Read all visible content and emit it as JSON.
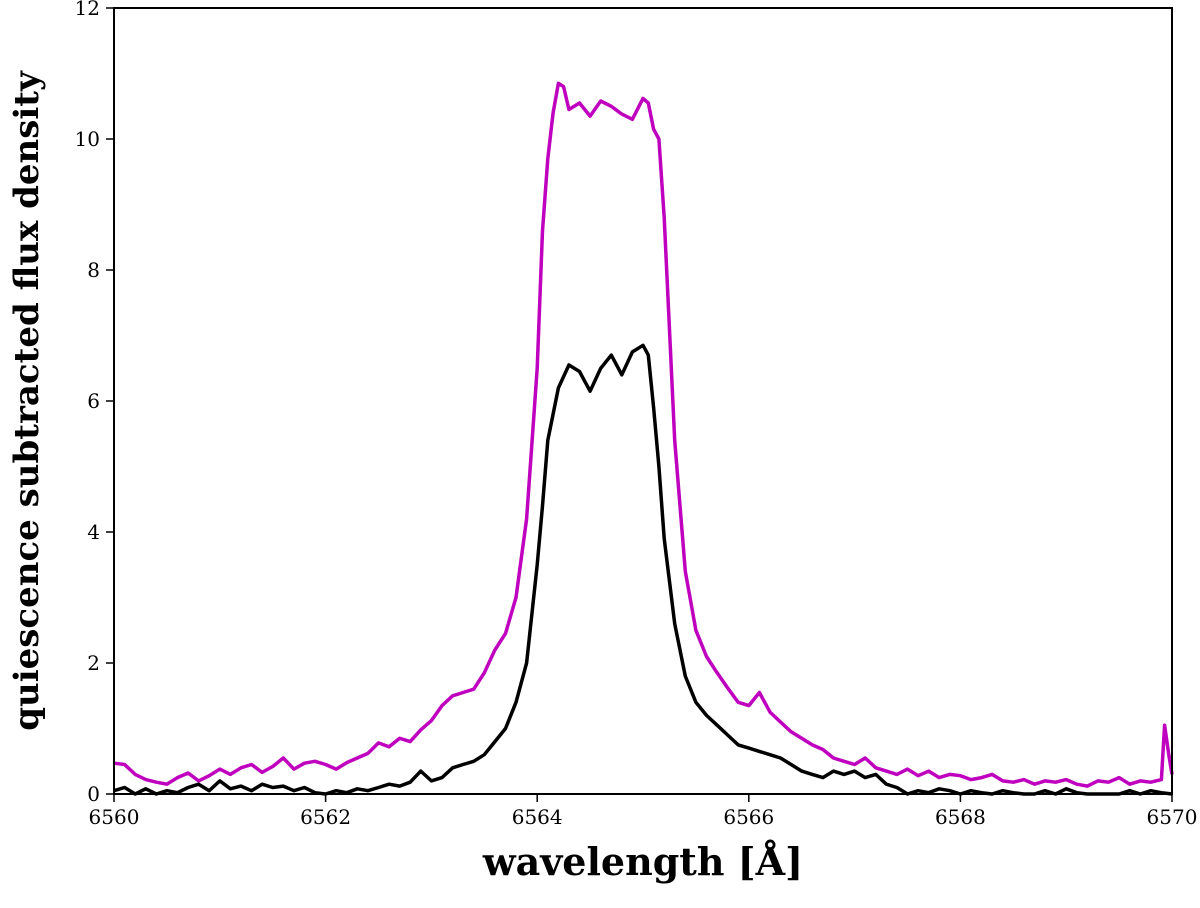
{
  "chart_data": {
    "type": "line",
    "title": "",
    "xlabel": "wavelength [Å]",
    "ylabel": "quiescence subtracted flux density",
    "xlim": [
      6560,
      6570
    ],
    "ylim": [
      0,
      12
    ],
    "x_ticks": [
      6560,
      6562,
      6564,
      6566,
      6568,
      6570
    ],
    "y_ticks": [
      0,
      2,
      4,
      6,
      8,
      10,
      12
    ],
    "x_tick_labels": [
      "6560",
      "6562",
      "6564",
      "6566",
      "6568",
      "6570"
    ],
    "y_tick_labels": [
      "0",
      "2",
      "4",
      "6",
      "8",
      "10",
      "12"
    ],
    "grid": false,
    "legend": "none",
    "series": [
      {
        "name": "magenta",
        "color": "#bf00bf",
        "points": [
          [
            6560.0,
            0.47
          ],
          [
            6560.1,
            0.45
          ],
          [
            6560.2,
            0.3
          ],
          [
            6560.3,
            0.22
          ],
          [
            6560.4,
            0.18
          ],
          [
            6560.5,
            0.15
          ],
          [
            6560.6,
            0.25
          ],
          [
            6560.7,
            0.32
          ],
          [
            6560.8,
            0.2
          ],
          [
            6560.9,
            0.28
          ],
          [
            6561.0,
            0.38
          ],
          [
            6561.1,
            0.3
          ],
          [
            6561.2,
            0.4
          ],
          [
            6561.3,
            0.45
          ],
          [
            6561.4,
            0.33
          ],
          [
            6561.5,
            0.42
          ],
          [
            6561.6,
            0.55
          ],
          [
            6561.7,
            0.38
          ],
          [
            6561.8,
            0.47
          ],
          [
            6561.9,
            0.5
          ],
          [
            6562.0,
            0.45
          ],
          [
            6562.1,
            0.38
          ],
          [
            6562.2,
            0.48
          ],
          [
            6562.3,
            0.55
          ],
          [
            6562.4,
            0.62
          ],
          [
            6562.5,
            0.78
          ],
          [
            6562.6,
            0.72
          ],
          [
            6562.7,
            0.85
          ],
          [
            6562.8,
            0.8
          ],
          [
            6562.9,
            0.98
          ],
          [
            6563.0,
            1.12
          ],
          [
            6563.1,
            1.35
          ],
          [
            6563.2,
            1.5
          ],
          [
            6563.3,
            1.55
          ],
          [
            6563.4,
            1.6
          ],
          [
            6563.5,
            1.85
          ],
          [
            6563.6,
            2.2
          ],
          [
            6563.7,
            2.45
          ],
          [
            6563.8,
            3.0
          ],
          [
            6563.9,
            4.2
          ],
          [
            6564.0,
            6.5
          ],
          [
            6564.05,
            8.6
          ],
          [
            6564.1,
            9.7
          ],
          [
            6564.15,
            10.4
          ],
          [
            6564.2,
            10.85
          ],
          [
            6564.25,
            10.8
          ],
          [
            6564.3,
            10.45
          ],
          [
            6564.4,
            10.55
          ],
          [
            6564.5,
            10.35
          ],
          [
            6564.6,
            10.58
          ],
          [
            6564.7,
            10.5
          ],
          [
            6564.8,
            10.38
          ],
          [
            6564.9,
            10.3
          ],
          [
            6565.0,
            10.62
          ],
          [
            6565.05,
            10.55
          ],
          [
            6565.1,
            10.15
          ],
          [
            6565.15,
            10.0
          ],
          [
            6565.2,
            8.8
          ],
          [
            6565.3,
            5.4
          ],
          [
            6565.4,
            3.4
          ],
          [
            6565.5,
            2.5
          ],
          [
            6565.6,
            2.1
          ],
          [
            6565.7,
            1.85
          ],
          [
            6565.8,
            1.62
          ],
          [
            6565.9,
            1.4
          ],
          [
            6566.0,
            1.35
          ],
          [
            6566.1,
            1.55
          ],
          [
            6566.2,
            1.25
          ],
          [
            6566.3,
            1.1
          ],
          [
            6566.4,
            0.95
          ],
          [
            6566.5,
            0.85
          ],
          [
            6566.6,
            0.75
          ],
          [
            6566.7,
            0.68
          ],
          [
            6566.8,
            0.55
          ],
          [
            6566.9,
            0.5
          ],
          [
            6567.0,
            0.45
          ],
          [
            6567.1,
            0.55
          ],
          [
            6567.2,
            0.4
          ],
          [
            6567.3,
            0.35
          ],
          [
            6567.4,
            0.3
          ],
          [
            6567.5,
            0.38
          ],
          [
            6567.6,
            0.28
          ],
          [
            6567.7,
            0.35
          ],
          [
            6567.8,
            0.25
          ],
          [
            6567.9,
            0.3
          ],
          [
            6568.0,
            0.28
          ],
          [
            6568.1,
            0.22
          ],
          [
            6568.2,
            0.25
          ],
          [
            6568.3,
            0.3
          ],
          [
            6568.4,
            0.2
          ],
          [
            6568.5,
            0.18
          ],
          [
            6568.6,
            0.22
          ],
          [
            6568.7,
            0.15
          ],
          [
            6568.8,
            0.2
          ],
          [
            6568.9,
            0.18
          ],
          [
            6569.0,
            0.22
          ],
          [
            6569.1,
            0.15
          ],
          [
            6569.2,
            0.12
          ],
          [
            6569.3,
            0.2
          ],
          [
            6569.4,
            0.18
          ],
          [
            6569.5,
            0.25
          ],
          [
            6569.6,
            0.15
          ],
          [
            6569.7,
            0.2
          ],
          [
            6569.8,
            0.18
          ],
          [
            6569.9,
            0.22
          ],
          [
            6569.93,
            1.05
          ],
          [
            6569.97,
            0.6
          ],
          [
            6570.0,
            0.3
          ]
        ]
      },
      {
        "name": "black",
        "color": "#000000",
        "points": [
          [
            6560.0,
            0.05
          ],
          [
            6560.1,
            0.1
          ],
          [
            6560.2,
            0.0
          ],
          [
            6560.3,
            0.08
          ],
          [
            6560.4,
            0.0
          ],
          [
            6560.5,
            0.05
          ],
          [
            6560.6,
            0.02
          ],
          [
            6560.7,
            0.1
          ],
          [
            6560.8,
            0.15
          ],
          [
            6560.9,
            0.05
          ],
          [
            6561.0,
            0.2
          ],
          [
            6561.1,
            0.08
          ],
          [
            6561.2,
            0.12
          ],
          [
            6561.3,
            0.05
          ],
          [
            6561.4,
            0.15
          ],
          [
            6561.5,
            0.1
          ],
          [
            6561.6,
            0.12
          ],
          [
            6561.7,
            0.05
          ],
          [
            6561.8,
            0.1
          ],
          [
            6561.9,
            0.02
          ],
          [
            6562.0,
            0.0
          ],
          [
            6562.1,
            0.05
          ],
          [
            6562.2,
            0.02
          ],
          [
            6562.3,
            0.08
          ],
          [
            6562.4,
            0.05
          ],
          [
            6562.5,
            0.1
          ],
          [
            6562.6,
            0.15
          ],
          [
            6562.7,
            0.12
          ],
          [
            6562.8,
            0.18
          ],
          [
            6562.9,
            0.35
          ],
          [
            6563.0,
            0.2
          ],
          [
            6563.1,
            0.25
          ],
          [
            6563.2,
            0.4
          ],
          [
            6563.3,
            0.45
          ],
          [
            6563.4,
            0.5
          ],
          [
            6563.5,
            0.6
          ],
          [
            6563.6,
            0.8
          ],
          [
            6563.7,
            1.0
          ],
          [
            6563.8,
            1.4
          ],
          [
            6563.9,
            2.0
          ],
          [
            6564.0,
            3.5
          ],
          [
            6564.05,
            4.4
          ],
          [
            6564.1,
            5.4
          ],
          [
            6564.15,
            5.8
          ],
          [
            6564.2,
            6.2
          ],
          [
            6564.3,
            6.55
          ],
          [
            6564.4,
            6.45
          ],
          [
            6564.5,
            6.15
          ],
          [
            6564.6,
            6.5
          ],
          [
            6564.7,
            6.7
          ],
          [
            6564.8,
            6.4
          ],
          [
            6564.9,
            6.75
          ],
          [
            6565.0,
            6.85
          ],
          [
            6565.05,
            6.7
          ],
          [
            6565.1,
            5.9
          ],
          [
            6565.15,
            5.0
          ],
          [
            6565.2,
            3.9
          ],
          [
            6565.3,
            2.6
          ],
          [
            6565.4,
            1.8
          ],
          [
            6565.5,
            1.4
          ],
          [
            6565.6,
            1.2
          ],
          [
            6565.7,
            1.05
          ],
          [
            6565.8,
            0.9
          ],
          [
            6565.9,
            0.75
          ],
          [
            6566.0,
            0.7
          ],
          [
            6566.1,
            0.65
          ],
          [
            6566.2,
            0.6
          ],
          [
            6566.3,
            0.55
          ],
          [
            6566.4,
            0.45
          ],
          [
            6566.5,
            0.35
          ],
          [
            6566.6,
            0.3
          ],
          [
            6566.7,
            0.25
          ],
          [
            6566.8,
            0.35
          ],
          [
            6566.9,
            0.3
          ],
          [
            6567.0,
            0.35
          ],
          [
            6567.1,
            0.25
          ],
          [
            6567.2,
            0.3
          ],
          [
            6567.3,
            0.15
          ],
          [
            6567.4,
            0.1
          ],
          [
            6567.5,
            0.0
          ],
          [
            6567.6,
            0.05
          ],
          [
            6567.7,
            0.02
          ],
          [
            6567.8,
            0.08
          ],
          [
            6567.9,
            0.05
          ],
          [
            6568.0,
            0.0
          ],
          [
            6568.1,
            0.05
          ],
          [
            6568.2,
            0.02
          ],
          [
            6568.3,
            0.0
          ],
          [
            6568.4,
            0.05
          ],
          [
            6568.5,
            0.02
          ],
          [
            6568.6,
            0.0
          ],
          [
            6568.7,
            0.0
          ],
          [
            6568.8,
            0.05
          ],
          [
            6568.9,
            0.0
          ],
          [
            6569.0,
            0.08
          ],
          [
            6569.1,
            0.02
          ],
          [
            6569.2,
            0.0
          ],
          [
            6569.3,
            0.0
          ],
          [
            6569.4,
            0.0
          ],
          [
            6569.5,
            0.0
          ],
          [
            6569.6,
            0.05
          ],
          [
            6569.7,
            0.0
          ],
          [
            6569.8,
            0.05
          ],
          [
            6569.9,
            0.02
          ],
          [
            6570.0,
            0.0
          ]
        ]
      }
    ]
  }
}
